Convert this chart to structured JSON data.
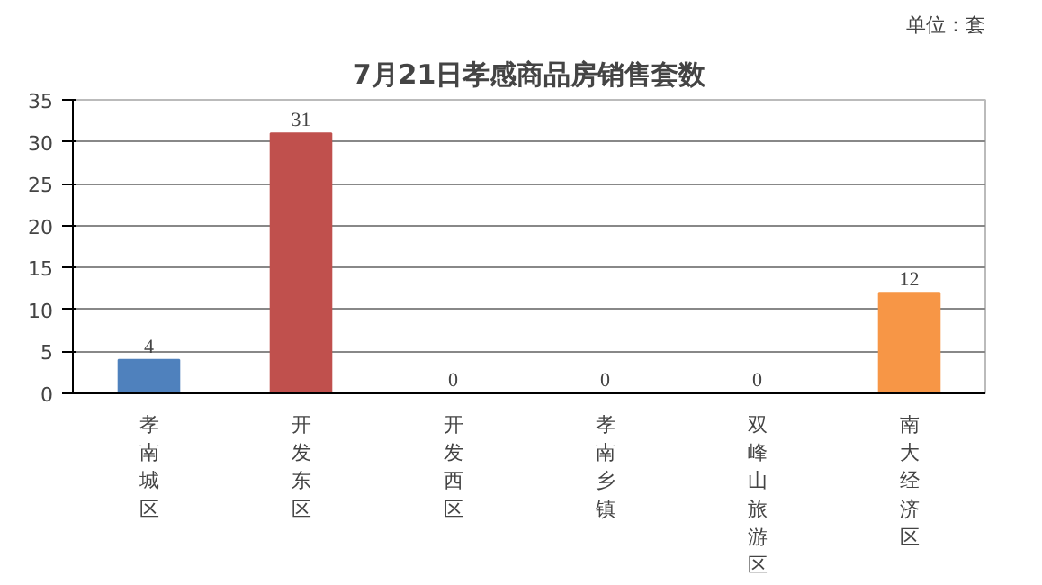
{
  "chart_data": {
    "type": "bar",
    "title": "7月21日孝感商品房销售套数",
    "annotations": [
      "单位：套"
    ],
    "categories": [
      "孝南城区",
      "开发东区",
      "开发西区",
      "孝南乡镇",
      "双峰山旅游区",
      "南大经济区"
    ],
    "values": [
      4,
      31,
      0,
      0,
      0,
      12
    ],
    "colors": [
      "#4f81bd",
      "#c0504d",
      "#9bbb59",
      "#8064a2",
      "#4bacc6",
      "#f79646"
    ],
    "ylim": [
      0,
      35
    ],
    "yticks": [
      0,
      5,
      10,
      15,
      20,
      25,
      30,
      35
    ],
    "grid": "y",
    "data_labels": true
  }
}
